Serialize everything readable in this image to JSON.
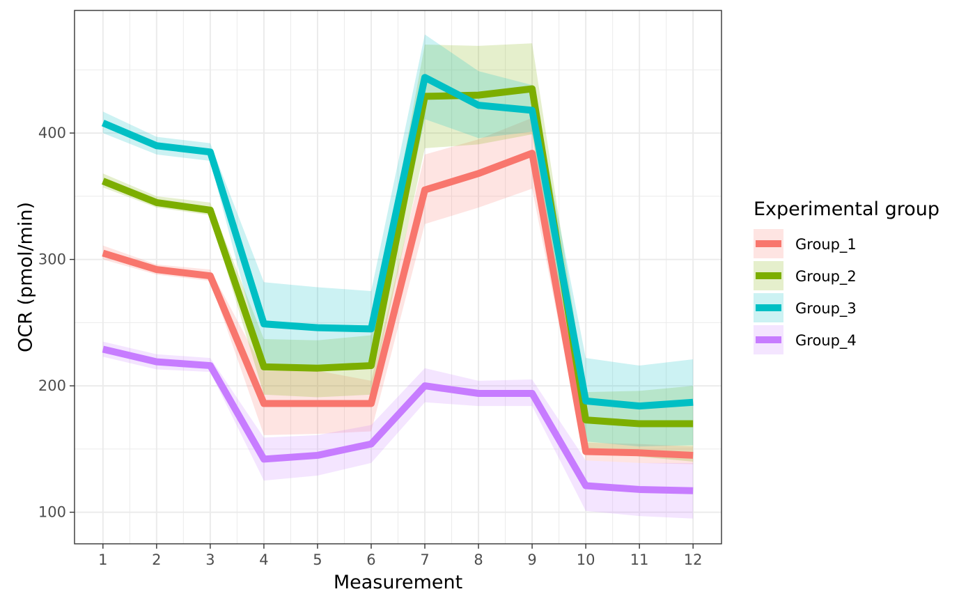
{
  "chart_data": {
    "type": "line",
    "xlabel": "Measurement",
    "ylabel": "OCR (pmol/min)",
    "x": [
      1,
      2,
      3,
      4,
      5,
      6,
      7,
      8,
      9,
      10,
      11,
      12
    ],
    "x_tick_labels": [
      "1",
      "2",
      "3",
      "4",
      "5",
      "6",
      "7",
      "8",
      "9",
      "10",
      "11",
      "12"
    ],
    "y_ticks": [
      100,
      200,
      300,
      400
    ],
    "y_tick_labels": [
      "100",
      "200",
      "300",
      "400"
    ],
    "xlim": [
      0.47,
      12.53
    ],
    "ylim": [
      75,
      497
    ],
    "grid": true,
    "legend": {
      "title": "Experimental group",
      "position": "right"
    },
    "series": [
      {
        "name": "Group_1",
        "color": "#F8766D",
        "values": [
          305,
          292,
          287,
          186,
          186,
          186,
          355,
          368,
          384,
          148,
          147,
          145
        ],
        "lower": [
          300,
          288,
          283,
          161,
          162,
          164,
          328,
          341,
          356,
          141,
          139,
          138
        ],
        "upper": [
          311,
          296,
          292,
          212,
          212,
          204,
          383,
          395,
          412,
          155,
          154,
          152
        ]
      },
      {
        "name": "Group_2",
        "color": "#7CAE00",
        "values": [
          362,
          345,
          339,
          215,
          214,
          216,
          429,
          430,
          435,
          173,
          170,
          170
        ],
        "lower": [
          357,
          341,
          335,
          193,
          191,
          193,
          388,
          391,
          399,
          151,
          144,
          140
        ],
        "upper": [
          368,
          350,
          345,
          237,
          236,
          240,
          470,
          469,
          471,
          195,
          196,
          200
        ]
      },
      {
        "name": "Group_3",
        "color": "#00BFC4",
        "values": [
          408,
          390,
          385,
          249,
          246,
          245,
          444,
          422,
          418,
          188,
          184,
          187
        ],
        "lower": [
          400,
          383,
          378,
          216,
          213,
          214,
          411,
          396,
          401,
          156,
          152,
          153
        ],
        "upper": [
          417,
          397,
          392,
          282,
          278,
          275,
          478,
          449,
          438,
          222,
          216,
          221
        ]
      },
      {
        "name": "Group_4",
        "color": "#C77CFF",
        "values": [
          229,
          219,
          216,
          142,
          145,
          154,
          200,
          194,
          194,
          121,
          118,
          117
        ],
        "lower": [
          223,
          213,
          211,
          125,
          129,
          139,
          187,
          184,
          184,
          101,
          97,
          95
        ],
        "upper": [
          235,
          225,
          222,
          159,
          161,
          169,
          214,
          204,
          205,
          141,
          139,
          139
        ]
      }
    ]
  }
}
